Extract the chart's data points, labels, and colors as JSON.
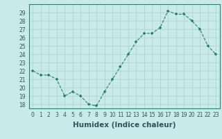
{
  "x": [
    0,
    1,
    2,
    3,
    4,
    5,
    6,
    7,
    8,
    9,
    10,
    11,
    12,
    13,
    14,
    15,
    16,
    17,
    18,
    19,
    20,
    21,
    22,
    23
  ],
  "y": [
    22,
    21.5,
    21.5,
    21,
    19,
    19.5,
    19,
    18,
    17.8,
    19.5,
    21,
    22.5,
    24,
    25.5,
    26.5,
    26.5,
    27.2,
    29.2,
    28.8,
    28.8,
    28,
    27,
    25,
    24
  ],
  "line_color": "#2e7d6e",
  "marker_color": "#2e7d6e",
  "bg_color": "#c8eaea",
  "grid_color": "#aecece",
  "xlabel": "Humidex (Indice chaleur)",
  "xlim": [
    -0.5,
    23.5
  ],
  "ylim": [
    17.5,
    30
  ],
  "yticks": [
    18,
    19,
    20,
    21,
    22,
    23,
    24,
    25,
    26,
    27,
    28,
    29
  ],
  "xticks": [
    0,
    1,
    2,
    3,
    4,
    5,
    6,
    7,
    8,
    9,
    10,
    11,
    12,
    13,
    14,
    15,
    16,
    17,
    18,
    19,
    20,
    21,
    22,
    23
  ],
  "tick_label_fontsize": 5.5,
  "xlabel_fontsize": 7.5,
  "tick_color": "#2e5555",
  "axis_color": "#2e7d6e"
}
